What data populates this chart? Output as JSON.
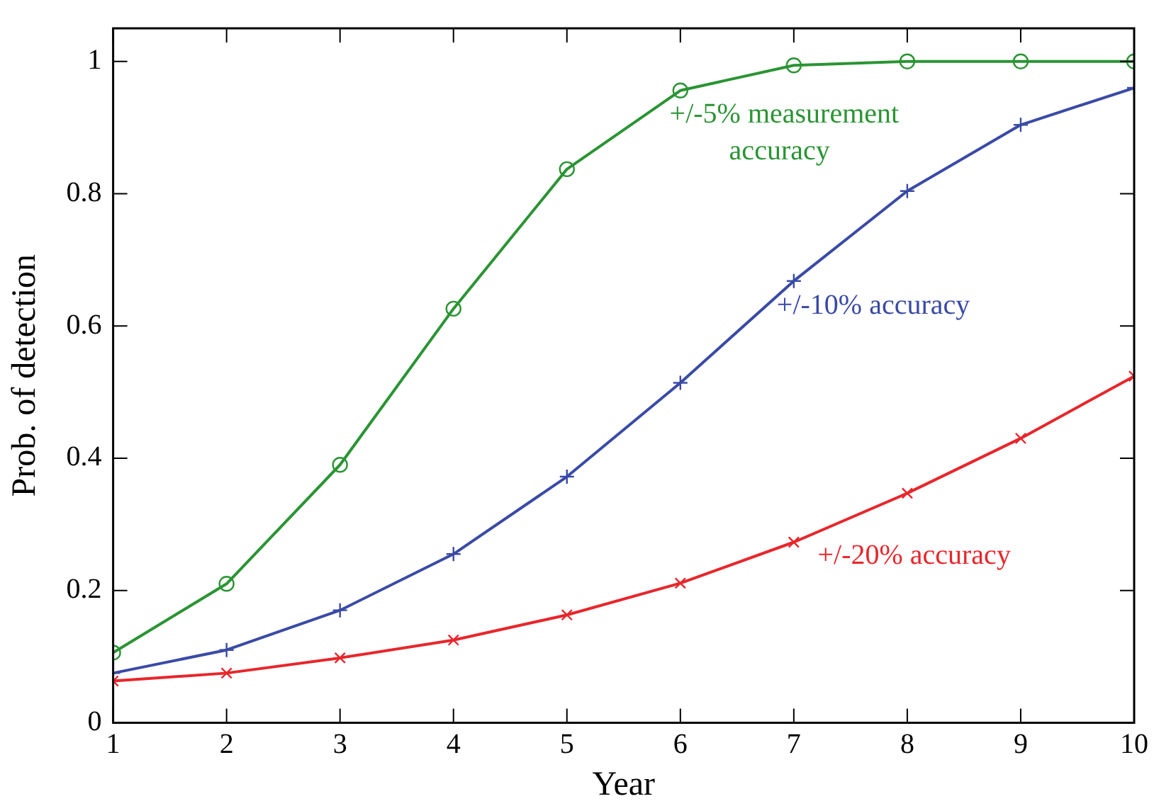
{
  "chart_data": {
    "type": "line",
    "xlabel": "Year",
    "ylabel": "Prob. of detection",
    "x": [
      1,
      2,
      3,
      4,
      5,
      6,
      7,
      8,
      9,
      10
    ],
    "series": [
      {
        "name": "+/-5% measurement accuracy",
        "color": "#2a9433",
        "marker": "circle",
        "values": [
          0.106,
          0.21,
          0.39,
          0.626,
          0.837,
          0.956,
          0.994,
          1.0,
          1.0,
          1.0
        ]
      },
      {
        "name": "+/-10% accuracy",
        "color": "#3a4aa6",
        "marker": "plus",
        "values": [
          0.075,
          0.11,
          0.17,
          0.255,
          0.372,
          0.514,
          0.668,
          0.804,
          0.904,
          0.96
        ]
      },
      {
        "name": "+/-20% accuracy",
        "color": "#e8262b",
        "marker": "cross",
        "values": [
          0.063,
          0.075,
          0.098,
          0.125,
          0.163,
          0.211,
          0.273,
          0.347,
          0.43,
          0.524
        ]
      }
    ],
    "xlim": [
      1,
      10
    ],
    "xticks": [
      1,
      2,
      3,
      4,
      5,
      6,
      7,
      8,
      9,
      10
    ],
    "ylim": [
      0,
      1.05
    ],
    "yticks": [
      0,
      0.2,
      0.4,
      0.6,
      0.8,
      1
    ],
    "grid": false,
    "legend": false,
    "line_style": "solid"
  }
}
